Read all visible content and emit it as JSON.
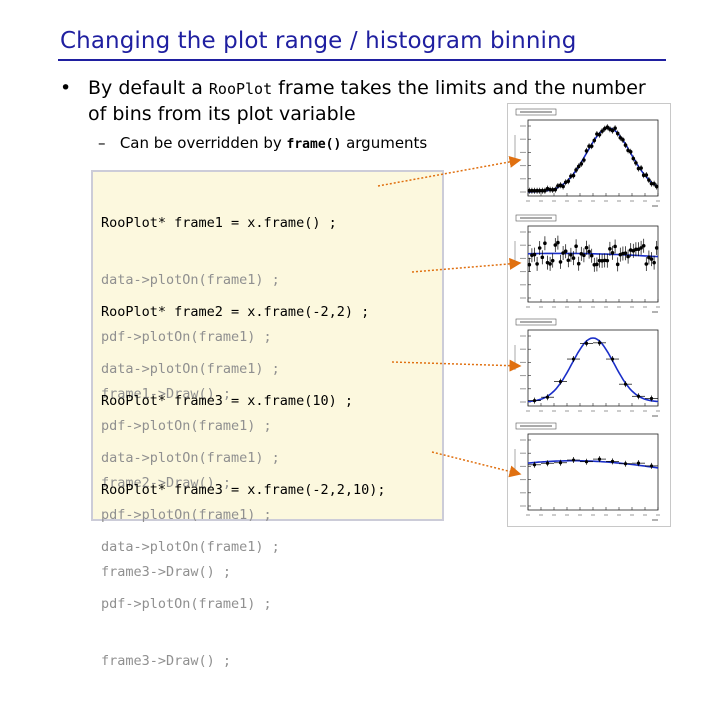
{
  "slide": {
    "title": "Changing the plot range / histogram binning",
    "bullet": {
      "marker": "•",
      "text_before": "By default a ",
      "code": "RooPlot",
      "text_after": " frame takes the limits and the number of bins from its plot variable"
    },
    "sub_bullet": {
      "marker": "–",
      "text_before": "Can be overridden by ",
      "code": "frame()",
      "text_after": " arguments"
    },
    "code_blocks": [
      {
        "lines": [
          "RooPlot* frame1 = x.frame() ;",
          "data->plotOn(frame1) ;",
          "pdf->plotOn(frame1) ;",
          "frame1->Draw() ;"
        ]
      },
      {
        "lines": [
          "RooPlot* frame2 = x.frame(-2,2) ;",
          "data->plotOn(frame1) ;",
          "pdf->plotOn(frame1) ;",
          "frame2->Draw() ;"
        ]
      },
      {
        "lines": [
          "RooPlot* frame3 = x.frame(10) ;",
          "data->plotOn(frame1) ;",
          "pdf->plotOn(frame1) ;",
          "frame3->Draw() ;"
        ]
      },
      {
        "lines": [
          "RooPlot* frame3 = x.frame(-2,2,10);",
          "data->plotOn(frame1) ;",
          "pdf->plotOn(frame1) ;",
          "frame3->Draw() ;"
        ]
      }
    ],
    "colors": {
      "title": "#1f1fa0",
      "arrow": "#e07010",
      "curve": "#1a2ec8",
      "code_bg": "#fcf8de"
    },
    "thumbnail_plots": [
      {
        "kind": "gaussian-full-range",
        "curve_peak": 0.62,
        "curve_width": 0.17
      },
      {
        "kind": "zoomed-range",
        "curve_peak": 0.25,
        "curve_width": 1.1
      },
      {
        "kind": "coarse-binning",
        "curve_peak": 0.5,
        "curve_width": 0.16
      },
      {
        "kind": "zoomed-coarse-binning",
        "curve_peak": 0.35,
        "curve_width": 0.75
      }
    ]
  }
}
